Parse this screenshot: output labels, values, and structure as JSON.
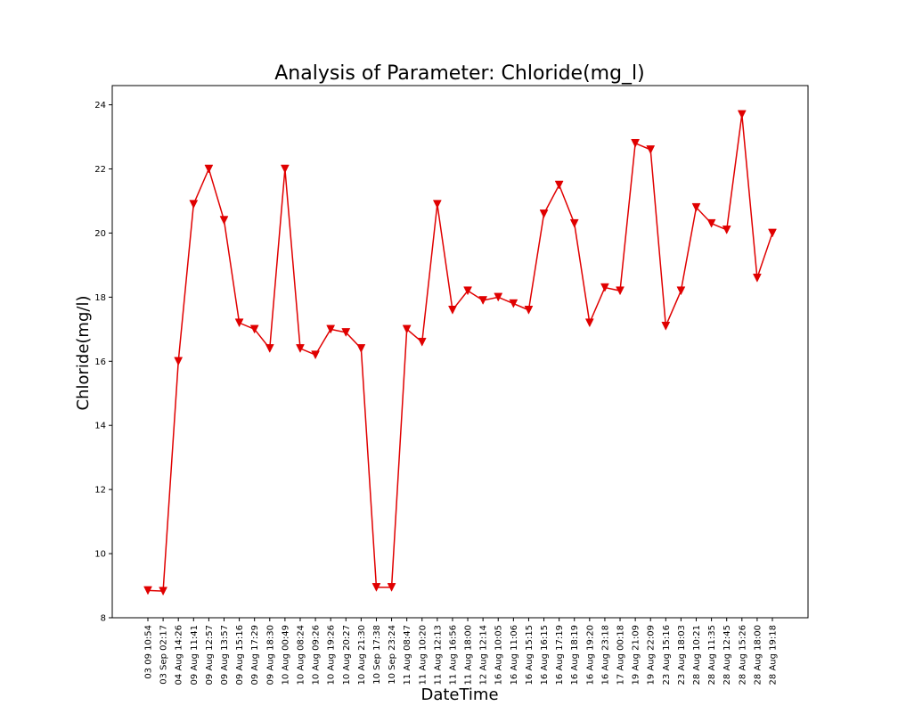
{
  "chart_data": {
    "type": "line",
    "title": "Analysis of Parameter: Chloride(mg_l)",
    "xlabel": "DateTime",
    "ylabel": "Chloride(mg/l)",
    "ylim": [
      8,
      24.6
    ],
    "yticks": [
      8,
      10,
      12,
      14,
      16,
      18,
      20,
      22,
      24
    ],
    "grid": false,
    "marker": "triangle-down",
    "color": "#e00000",
    "categories": [
      "03 09 10:54",
      "03 Sep 02:17",
      "04 Aug 14:26",
      "09 Aug 11:41",
      "09 Aug 12:57",
      "09 Aug 13:57",
      "09 Aug 15:16",
      "09 Aug 17:29",
      "09 Aug 18:30",
      "10 Aug 00:49",
      "10 Aug 08:24",
      "10 Aug 09:26",
      "10 Aug 19:26",
      "10 Aug 20:27",
      "10 Aug 21:30",
      "10 Sep 17:38",
      "10 Sep 23:24",
      "11 Aug 08:47",
      "11 Aug 10:20",
      "11 Aug 12:13",
      "11 Aug 16:56",
      "11 Aug 18:00",
      "12 Aug 12:14",
      "16 Aug 10:05",
      "16 Aug 11:06",
      "16 Aug 15:15",
      "16 Aug 16:15",
      "16 Aug 17:19",
      "16 Aug 18:19",
      "16 Aug 19:20",
      "16 Aug 23:18",
      "17 Aug 00:18",
      "19 Aug 21:09",
      "19 Aug 22:09",
      "23 Aug 15:16",
      "23 Aug 18:03",
      "28 Aug 10:21",
      "28 Aug 11:35",
      "28 Aug 12:45",
      "28 Aug 15:26",
      "28 Aug 18:00",
      "28 Aug 19:18"
    ],
    "values": [
      8.85,
      8.83,
      16.0,
      20.9,
      22.0,
      20.4,
      17.2,
      17.0,
      16.4,
      22.0,
      16.4,
      16.2,
      17.0,
      16.9,
      16.4,
      8.95,
      8.95,
      17.0,
      16.6,
      20.9,
      17.6,
      18.2,
      17.9,
      18.0,
      17.8,
      17.6,
      20.6,
      21.5,
      20.3,
      17.2,
      18.3,
      18.2,
      22.8,
      22.6,
      17.1,
      18.2,
      20.8,
      20.3,
      20.1,
      23.7,
      18.6,
      20.0
    ]
  }
}
